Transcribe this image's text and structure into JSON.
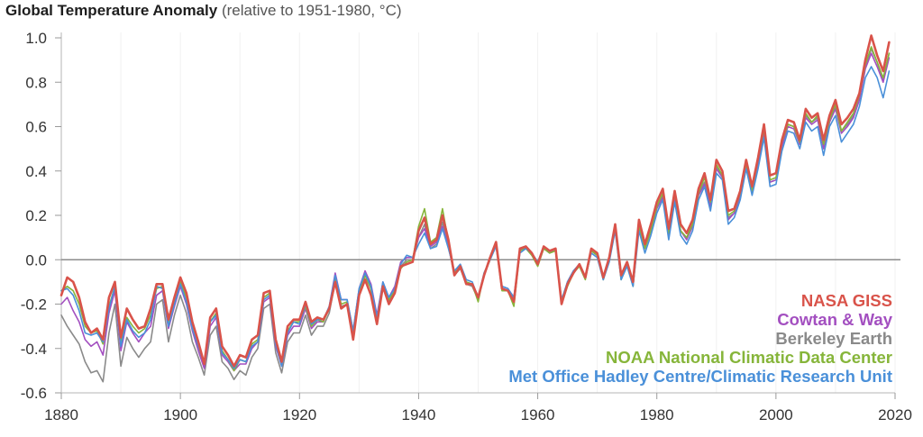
{
  "title": "Global Temperature Anomaly",
  "subtitle": "(relative to 1951-1980, °C)",
  "colors": {
    "zero_line": "#8c8c8c",
    "tick_text": "#333333"
  },
  "chart_data": {
    "type": "line",
    "title": "Global Temperature Anomaly",
    "subtitle": "(relative to 1951-1980, °C)",
    "xlabel": "",
    "ylabel": "",
    "xlim": [
      1880,
      2020
    ],
    "ylim": [
      -0.6,
      1.0
    ],
    "x_ticks": [
      1880,
      1900,
      1920,
      1940,
      1960,
      1980,
      2000,
      2020
    ],
    "x_tick_labels": [
      "1880",
      "1900",
      "1920",
      "1940",
      "1960",
      "1980",
      "2000",
      "2020"
    ],
    "y_ticks": [
      -0.6,
      -0.4,
      -0.2,
      0.0,
      0.2,
      0.4,
      0.6,
      0.8,
      1.0
    ],
    "y_tick_labels": [
      "-0.6",
      "-0.4",
      "-0.2",
      "0.0",
      "0.2",
      "0.4",
      "0.6",
      "0.8",
      "1.0"
    ],
    "grid": true,
    "legend_position": "bottom-right",
    "x": [
      1880,
      1881,
      1882,
      1883,
      1884,
      1885,
      1886,
      1887,
      1888,
      1889,
      1890,
      1891,
      1892,
      1893,
      1894,
      1895,
      1896,
      1897,
      1898,
      1899,
      1900,
      1901,
      1902,
      1903,
      1904,
      1905,
      1906,
      1907,
      1908,
      1909,
      1910,
      1911,
      1912,
      1913,
      1914,
      1915,
      1916,
      1917,
      1918,
      1919,
      1920,
      1921,
      1922,
      1923,
      1924,
      1925,
      1926,
      1927,
      1928,
      1929,
      1930,
      1931,
      1932,
      1933,
      1934,
      1935,
      1936,
      1937,
      1938,
      1939,
      1940,
      1941,
      1942,
      1943,
      1944,
      1945,
      1946,
      1947,
      1948,
      1949,
      1950,
      1951,
      1952,
      1953,
      1954,
      1955,
      1956,
      1957,
      1958,
      1959,
      1960,
      1961,
      1962,
      1963,
      1964,
      1965,
      1966,
      1967,
      1968,
      1969,
      1970,
      1971,
      1972,
      1973,
      1974,
      1975,
      1976,
      1977,
      1978,
      1979,
      1980,
      1981,
      1982,
      1983,
      1984,
      1985,
      1986,
      1987,
      1988,
      1989,
      1990,
      1991,
      1992,
      1993,
      1994,
      1995,
      1996,
      1997,
      1998,
      1999,
      2000,
      2001,
      2002,
      2003,
      2004,
      2005,
      2006,
      2007,
      2008,
      2009,
      2010,
      2011,
      2012,
      2013,
      2014,
      2015,
      2016,
      2017,
      2018,
      2019
    ],
    "series": [
      {
        "name": "NASA GISS",
        "color": "#d9534a",
        "values": [
          -0.16,
          -0.08,
          -0.1,
          -0.17,
          -0.28,
          -0.33,
          -0.31,
          -0.36,
          -0.17,
          -0.1,
          -0.35,
          -0.22,
          -0.27,
          -0.31,
          -0.3,
          -0.22,
          -0.11,
          -0.11,
          -0.27,
          -0.17,
          -0.08,
          -0.15,
          -0.28,
          -0.37,
          -0.47,
          -0.26,
          -0.22,
          -0.39,
          -0.43,
          -0.48,
          -0.43,
          -0.44,
          -0.36,
          -0.34,
          -0.15,
          -0.14,
          -0.36,
          -0.46,
          -0.3,
          -0.27,
          -0.27,
          -0.19,
          -0.28,
          -0.26,
          -0.27,
          -0.22,
          -0.1,
          -0.22,
          -0.2,
          -0.36,
          -0.16,
          -0.09,
          -0.16,
          -0.29,
          -0.12,
          -0.2,
          -0.15,
          -0.03,
          -0.02,
          -0.01,
          0.13,
          0.19,
          0.07,
          0.09,
          0.2,
          0.09,
          -0.07,
          -0.03,
          -0.11,
          -0.11,
          -0.17,
          -0.07,
          0.01,
          0.08,
          -0.13,
          -0.14,
          -0.19,
          0.05,
          0.06,
          0.03,
          -0.02,
          0.06,
          0.04,
          0.05,
          -0.2,
          -0.11,
          -0.06,
          -0.02,
          -0.08,
          0.05,
          0.03,
          -0.08,
          0.01,
          0.16,
          -0.07,
          -0.01,
          -0.1,
          0.18,
          0.07,
          0.16,
          0.26,
          0.32,
          0.14,
          0.31,
          0.16,
          0.12,
          0.18,
          0.32,
          0.39,
          0.27,
          0.45,
          0.4,
          0.22,
          0.23,
          0.31,
          0.45,
          0.33,
          0.46,
          0.61,
          0.38,
          0.39,
          0.54,
          0.63,
          0.62,
          0.54,
          0.68,
          0.64,
          0.66,
          0.54,
          0.65,
          0.72,
          0.61,
          0.64,
          0.68,
          0.75,
          0.9,
          1.01,
          0.92,
          0.85,
          0.98
        ]
      },
      {
        "name": "Cowtan & Way",
        "color": "#a34fc0",
        "values": [
          -0.2,
          -0.17,
          -0.23,
          -0.28,
          -0.36,
          -0.39,
          -0.37,
          -0.43,
          -0.24,
          -0.14,
          -0.41,
          -0.28,
          -0.33,
          -0.37,
          -0.33,
          -0.3,
          -0.16,
          -0.14,
          -0.31,
          -0.21,
          -0.12,
          -0.2,
          -0.32,
          -0.41,
          -0.49,
          -0.3,
          -0.26,
          -0.43,
          -0.46,
          -0.5,
          -0.47,
          -0.47,
          -0.4,
          -0.37,
          -0.19,
          -0.17,
          -0.39,
          -0.48,
          -0.34,
          -0.3,
          -0.3,
          -0.22,
          -0.31,
          -0.28,
          -0.28,
          -0.21,
          -0.06,
          -0.18,
          -0.18,
          -0.32,
          -0.13,
          -0.05,
          -0.11,
          -0.25,
          -0.1,
          -0.17,
          -0.12,
          -0.01,
          0.01,
          0.01,
          0.1,
          0.14,
          0.06,
          0.08,
          0.15,
          0.06,
          -0.06,
          -0.03,
          -0.1,
          -0.11,
          -0.17,
          -0.06,
          0.0,
          0.07,
          -0.12,
          -0.13,
          -0.17,
          0.04,
          0.06,
          0.02,
          -0.02,
          0.05,
          0.03,
          0.05,
          -0.19,
          -0.1,
          -0.05,
          -0.02,
          -0.08,
          0.04,
          0.02,
          -0.08,
          0.0,
          0.14,
          -0.07,
          -0.02,
          -0.1,
          0.15,
          0.05,
          0.13,
          0.23,
          0.28,
          0.11,
          0.28,
          0.13,
          0.09,
          0.15,
          0.29,
          0.34,
          0.24,
          0.41,
          0.37,
          0.18,
          0.21,
          0.28,
          0.42,
          0.3,
          0.43,
          0.57,
          0.35,
          0.36,
          0.51,
          0.6,
          0.59,
          0.52,
          0.64,
          0.61,
          0.63,
          0.5,
          0.62,
          0.68,
          0.57,
          0.6,
          0.64,
          0.72,
          0.86,
          0.93,
          0.87,
          0.8,
          0.91
        ]
      },
      {
        "name": "Berkeley Earth",
        "color": "#8a8a8a",
        "values": [
          -0.25,
          -0.3,
          -0.34,
          -0.38,
          -0.46,
          -0.51,
          -0.5,
          -0.55,
          -0.33,
          -0.2,
          -0.48,
          -0.35,
          -0.4,
          -0.44,
          -0.4,
          -0.37,
          -0.2,
          -0.18,
          -0.37,
          -0.25,
          -0.16,
          -0.24,
          -0.37,
          -0.44,
          -0.52,
          -0.34,
          -0.3,
          -0.46,
          -0.49,
          -0.54,
          -0.5,
          -0.52,
          -0.44,
          -0.4,
          -0.22,
          -0.2,
          -0.42,
          -0.51,
          -0.37,
          -0.33,
          -0.33,
          -0.25,
          -0.34,
          -0.3,
          -0.3,
          -0.24,
          -0.1,
          -0.21,
          -0.2,
          -0.33,
          -0.15,
          -0.07,
          -0.13,
          -0.27,
          -0.12,
          -0.19,
          -0.14,
          -0.03,
          0.0,
          0.0,
          0.1,
          0.16,
          0.05,
          0.07,
          0.17,
          0.06,
          -0.07,
          -0.04,
          -0.11,
          -0.12,
          -0.18,
          -0.07,
          0.0,
          0.07,
          -0.13,
          -0.14,
          -0.18,
          0.04,
          0.06,
          0.03,
          -0.02,
          0.05,
          0.04,
          0.05,
          -0.19,
          -0.1,
          -0.05,
          -0.03,
          -0.08,
          0.04,
          0.02,
          -0.09,
          0.0,
          0.14,
          -0.08,
          -0.02,
          -0.11,
          0.15,
          0.06,
          0.13,
          0.24,
          0.29,
          0.12,
          0.29,
          0.13,
          0.1,
          0.16,
          0.3,
          0.35,
          0.25,
          0.42,
          0.38,
          0.19,
          0.21,
          0.29,
          0.43,
          0.31,
          0.43,
          0.58,
          0.35,
          0.36,
          0.52,
          0.61,
          0.6,
          0.52,
          0.65,
          0.62,
          0.64,
          0.51,
          0.62,
          0.69,
          0.58,
          0.61,
          0.65,
          0.73,
          0.87,
          0.95,
          0.89,
          0.81,
          0.93
        ]
      },
      {
        "name": "NOAA National Climatic Data Center",
        "color": "#86b53a",
        "values": [
          -0.14,
          -0.12,
          -0.14,
          -0.2,
          -0.3,
          -0.33,
          -0.32,
          -0.38,
          -0.21,
          -0.12,
          -0.37,
          -0.26,
          -0.3,
          -0.33,
          -0.31,
          -0.25,
          -0.13,
          -0.12,
          -0.29,
          -0.19,
          -0.1,
          -0.17,
          -0.3,
          -0.39,
          -0.47,
          -0.28,
          -0.24,
          -0.41,
          -0.45,
          -0.5,
          -0.45,
          -0.46,
          -0.38,
          -0.36,
          -0.17,
          -0.15,
          -0.37,
          -0.47,
          -0.32,
          -0.28,
          -0.28,
          -0.21,
          -0.3,
          -0.27,
          -0.28,
          -0.22,
          -0.08,
          -0.2,
          -0.19,
          -0.33,
          -0.15,
          -0.07,
          -0.13,
          -0.27,
          -0.11,
          -0.18,
          -0.14,
          -0.04,
          -0.01,
          0.0,
          0.15,
          0.23,
          0.08,
          0.1,
          0.23,
          0.08,
          -0.06,
          -0.03,
          -0.1,
          -0.11,
          -0.19,
          -0.06,
          0.0,
          0.07,
          -0.14,
          -0.14,
          -0.21,
          0.04,
          0.05,
          0.02,
          -0.03,
          0.05,
          0.03,
          0.04,
          -0.2,
          -0.12,
          -0.06,
          -0.03,
          -0.09,
          0.04,
          0.02,
          -0.09,
          0.0,
          0.14,
          -0.09,
          -0.02,
          -0.12,
          0.15,
          0.05,
          0.13,
          0.24,
          0.3,
          0.12,
          0.3,
          0.13,
          0.1,
          0.16,
          0.3,
          0.37,
          0.26,
          0.43,
          0.38,
          0.2,
          0.22,
          0.3,
          0.43,
          0.31,
          0.45,
          0.59,
          0.36,
          0.37,
          0.53,
          0.61,
          0.6,
          0.53,
          0.66,
          0.62,
          0.65,
          0.52,
          0.63,
          0.7,
          0.58,
          0.62,
          0.66,
          0.74,
          0.88,
          0.96,
          0.89,
          0.82,
          0.93
        ]
      },
      {
        "name": "Met Office Hadley Centre/Climatic Research Unit",
        "color": "#4a90d9",
        "values": [
          -0.14,
          -0.13,
          -0.16,
          -0.23,
          -0.33,
          -0.34,
          -0.33,
          -0.37,
          -0.22,
          -0.12,
          -0.39,
          -0.27,
          -0.32,
          -0.35,
          -0.33,
          -0.27,
          -0.12,
          -0.13,
          -0.3,
          -0.2,
          -0.11,
          -0.19,
          -0.31,
          -0.39,
          -0.47,
          -0.28,
          -0.25,
          -0.42,
          -0.45,
          -0.49,
          -0.45,
          -0.46,
          -0.39,
          -0.37,
          -0.18,
          -0.16,
          -0.38,
          -0.48,
          -0.33,
          -0.28,
          -0.29,
          -0.2,
          -0.29,
          -0.27,
          -0.27,
          -0.21,
          -0.07,
          -0.18,
          -0.18,
          -0.32,
          -0.13,
          -0.06,
          -0.12,
          -0.26,
          -0.1,
          -0.17,
          -0.13,
          -0.02,
          0.02,
          0.01,
          0.07,
          0.12,
          0.05,
          0.06,
          0.14,
          0.05,
          -0.05,
          -0.02,
          -0.09,
          -0.1,
          -0.17,
          -0.06,
          0.0,
          0.06,
          -0.12,
          -0.13,
          -0.17,
          0.03,
          0.05,
          0.03,
          -0.01,
          0.06,
          0.04,
          0.05,
          -0.18,
          -0.1,
          -0.05,
          -0.02,
          -0.08,
          0.03,
          0.01,
          -0.09,
          -0.01,
          0.13,
          -0.09,
          -0.03,
          -0.12,
          0.13,
          0.03,
          0.11,
          0.21,
          0.27,
          0.09,
          0.26,
          0.11,
          0.07,
          0.13,
          0.27,
          0.33,
          0.22,
          0.39,
          0.36,
          0.16,
          0.19,
          0.27,
          0.41,
          0.29,
          0.41,
          0.55,
          0.33,
          0.34,
          0.49,
          0.58,
          0.57,
          0.5,
          0.62,
          0.58,
          0.6,
          0.47,
          0.6,
          0.65,
          0.53,
          0.57,
          0.61,
          0.69,
          0.82,
          0.87,
          0.82,
          0.73,
          0.85
        ]
      }
    ]
  }
}
